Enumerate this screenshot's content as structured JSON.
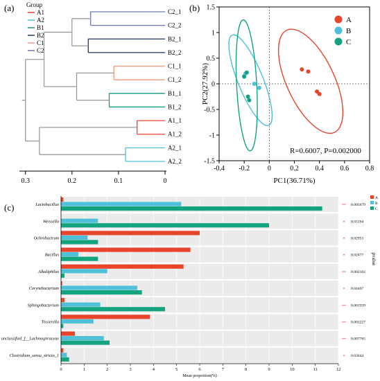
{
  "chart_data": [
    {
      "panel_label": "(a)",
      "type": "dendrogram",
      "legend": {
        "title": "Group",
        "items": [
          {
            "name": "A1",
            "color": "#e8442c"
          },
          {
            "name": "A2",
            "color": "#4fc0d8"
          },
          {
            "name": "B1",
            "color": "#0f9a7a"
          },
          {
            "name": "B2",
            "color": "#1a3563"
          },
          {
            "name": "C1",
            "color": "#f29a7e"
          },
          {
            "name": "C2",
            "color": "#6e77b5"
          }
        ]
      },
      "leaves": [
        {
          "label": "C2_1",
          "group": "C2"
        },
        {
          "label": "C2_2",
          "group": "C2"
        },
        {
          "label": "B2_1",
          "group": "B2"
        },
        {
          "label": "B2_2",
          "group": "B2"
        },
        {
          "label": "C1_1",
          "group": "C1"
        },
        {
          "label": "C1_2",
          "group": "C1"
        },
        {
          "label": "B1_1",
          "group": "B1"
        },
        {
          "label": "B1_2",
          "group": "B1"
        },
        {
          "label": "A1_1",
          "group": "A1"
        },
        {
          "label": "A1_2",
          "group": "A1"
        },
        {
          "label": "A2_1",
          "group": "A2"
        },
        {
          "label": "A2_2",
          "group": "A2"
        }
      ],
      "merges": [
        {
          "children": [
            "C2_1",
            "C2_2"
          ],
          "height": 0.16,
          "color": "#6e77b5"
        },
        {
          "children": [
            "B2_1",
            "B2_2"
          ],
          "height": 0.165,
          "color": "#1a3563"
        },
        {
          "children": [
            "C1_1",
            "C1_2"
          ],
          "height": 0.11,
          "color": "#f29a7e"
        },
        {
          "children": [
            "B1_1",
            "B1_2"
          ],
          "height": 0.12,
          "color": "#0f9a7a"
        },
        {
          "children": [
            "A1_1",
            "A1_2"
          ],
          "height": 0.06,
          "color": "#e8442c"
        },
        {
          "children": [
            "A2_1",
            "A2_2"
          ],
          "height": 0.085,
          "color": "#4fc0d8"
        },
        {
          "children": [
            "C2",
            "B2"
          ],
          "height": 0.2,
          "color": "#9a9a9a"
        },
        {
          "children": [
            "C1",
            "B1"
          ],
          "height": 0.19,
          "color": "#9a9a9a"
        },
        {
          "children": [
            "CB2",
            "CB1"
          ],
          "height": 0.26,
          "color": "#9a9a9a"
        },
        {
          "children": [
            "A1",
            "A2"
          ],
          "height": 0.27,
          "color": "#9a9a9a"
        },
        {
          "children": [
            "CB",
            "A"
          ],
          "height": 0.3,
          "color": "#9a9a9a"
        }
      ],
      "x_ticks": [
        "0.3",
        "0.2",
        "0.1",
        "0"
      ],
      "xlim": [
        0.31,
        0
      ]
    },
    {
      "panel_label": "(b)",
      "type": "scatter",
      "xlabel": "PC1(36.71%)",
      "ylabel": "PC2(27.92%)",
      "xlim": [
        -0.4,
        0.8
      ],
      "ylim": [
        -1.5,
        1.5
      ],
      "x_ticks": [
        "-0.4",
        "-0.2",
        "0",
        "0.2",
        "0.4",
        "0.6",
        "0.8"
      ],
      "y_ticks": [
        "1.5",
        "1",
        "0.5",
        "0",
        "-0.5",
        "-1",
        "-1.5"
      ],
      "annotation": "R=0.6007, P=0.002000",
      "legend": [
        {
          "name": "A",
          "color": "#e8442c"
        },
        {
          "name": "B",
          "color": "#4fc0d8"
        },
        {
          "name": "C",
          "color": "#14a37f"
        }
      ],
      "series": [
        {
          "name": "A",
          "points": [
            [
              0.26,
              0.28
            ],
            [
              0.31,
              0.24
            ],
            [
              0.38,
              -0.15
            ],
            [
              0.4,
              -0.2
            ]
          ],
          "ellipse": {
            "cx": 0.33,
            "cy": 0.05,
            "rx": 0.19,
            "ry": 1.1,
            "angle": 25
          }
        },
        {
          "name": "B",
          "points": [
            [
              -0.19,
              0.2
            ],
            [
              -0.12,
              0.0
            ],
            [
              -0.08,
              -0.08
            ],
            [
              -0.2,
              0.15
            ]
          ],
          "ellipse": {
            "cx": -0.15,
            "cy": 0.07,
            "rx": 0.1,
            "ry": 0.95,
            "angle": 22
          }
        },
        {
          "name": "C",
          "points": [
            [
              -0.18,
              0.22
            ],
            [
              -0.2,
              0.14
            ],
            [
              -0.17,
              -0.25
            ],
            [
              -0.16,
              -0.32
            ]
          ],
          "ellipse": {
            "cx": -0.18,
            "cy": -0.03,
            "rx": 0.08,
            "ry": 1.28,
            "angle": 3
          }
        }
      ]
    },
    {
      "panel_label": "(c)",
      "type": "bar",
      "orientation": "horizontal",
      "xlabel": "Mean proportion(%)",
      "right_axis_label": "pvalue",
      "xlim": [
        0,
        12
      ],
      "x_ticks": [
        "0",
        "1",
        "2",
        "3",
        "4",
        "5",
        "6",
        "7",
        "8",
        "9",
        "10",
        "11",
        "12"
      ],
      "categories": [
        "Lactobacillus",
        "Weissella",
        "Ochrobactrum",
        "Bacillus",
        "Alkaliphilus",
        "Corynebacterium",
        "Sphingobacterium",
        "Tissierella",
        "unclassified_f__Lachnospiraceae",
        "Clostridium_sensu_stricto_1"
      ],
      "series": [
        {
          "name": "A",
          "color": "#e8442c",
          "values": [
            0.1,
            0.0,
            6.0,
            5.6,
            5.3,
            0.05,
            0.15,
            3.85,
            0.6,
            0.1
          ]
        },
        {
          "name": "B",
          "color": "#4fc0d8",
          "values": [
            5.2,
            1.6,
            1.15,
            0.75,
            2.0,
            3.3,
            1.7,
            1.4,
            1.85,
            0.25
          ]
        },
        {
          "name": "C",
          "color": "#14a37f",
          "values": [
            11.3,
            9.0,
            1.6,
            1.6,
            0.15,
            3.5,
            4.5,
            0.1,
            2.1,
            0.35
          ]
        }
      ],
      "significance": [
        "**",
        "*",
        "*",
        "*",
        "**",
        "*",
        "**",
        "**",
        "**",
        "*"
      ],
      "pvalues": [
        "0.005679",
        "0.03194",
        "0.02953",
        "0.02477",
        "0.002102",
        "0.04407",
        "0.001939",
        "0.002227",
        "0.007765",
        "0.03044"
      ]
    }
  ]
}
